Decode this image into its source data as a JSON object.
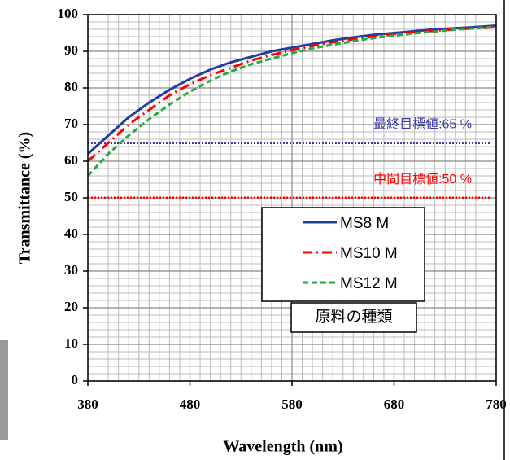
{
  "chart_data": {
    "type": "line",
    "x_label": "Wavelength (nm)",
    "y_label": "Transmittance (%)",
    "x": [
      380,
      400,
      420,
      440,
      460,
      480,
      500,
      520,
      540,
      560,
      580,
      600,
      620,
      640,
      660,
      680,
      700,
      720,
      740,
      760,
      780
    ],
    "series": [
      {
        "name": "MS8 M",
        "color": "#1f3fa0",
        "dash": "solid",
        "values": [
          62,
          67,
          72,
          76,
          79.5,
          82.5,
          85,
          87,
          88.5,
          90,
          91,
          92,
          93,
          93.8,
          94.5,
          95,
          95.5,
          96,
          96.3,
          96.6,
          97
        ]
      },
      {
        "name": "MS10 M",
        "color": "#ff0000",
        "dash": "dashdot",
        "values": [
          60,
          65,
          70,
          74,
          78,
          81,
          83.5,
          85.5,
          87.5,
          89,
          90.3,
          91.5,
          92.5,
          93.3,
          94,
          94.7,
          95.2,
          95.6,
          96,
          96.3,
          96.6
        ]
      },
      {
        "name": "MS12 M",
        "color": "#22aa44",
        "dash": "dashed",
        "values": [
          56,
          62,
          67,
          71.5,
          75.5,
          79,
          82,
          84.5,
          86.5,
          88,
          89.5,
          90.8,
          91.8,
          92.8,
          93.6,
          94.3,
          94.9,
          95.4,
          95.9,
          96.3,
          96.7
        ]
      }
    ],
    "reference_lines": [
      {
        "value": 65,
        "label": "最終目標値:65 %",
        "color": "#3a3aa8"
      },
      {
        "value": 50,
        "label": "中間目標値:50 %",
        "color": "#ff0000"
      }
    ],
    "legend_title": "原料の種類",
    "xlim": [
      380,
      780
    ],
    "xticks": [
      380,
      480,
      580,
      680,
      780
    ],
    "ylim": [
      0,
      100
    ],
    "yticks": [
      0,
      10,
      20,
      30,
      40,
      50,
      60,
      70,
      80,
      90,
      100
    ],
    "grid": true
  }
}
